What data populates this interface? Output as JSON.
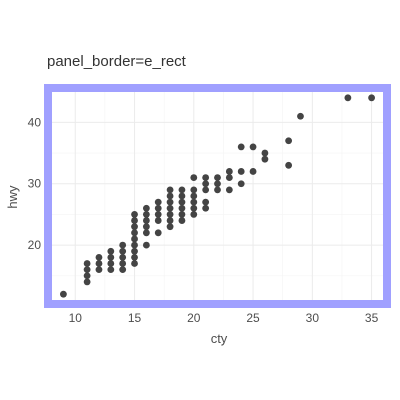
{
  "chart_data": {
    "type": "scatter",
    "title": "panel_border=e_rect",
    "xlabel": "cty",
    "ylabel": "hwy",
    "xlim": [
      7.7,
      36.3
    ],
    "ylim": [
      10.4,
      45.6
    ],
    "x_ticks": [
      "10",
      "15",
      "20",
      "25",
      "30",
      "35"
    ],
    "y_ticks": [
      "20",
      "30",
      "40"
    ],
    "grid": true,
    "border_color": "#a0a0ff",
    "point_color": "#444444",
    "series": [
      {
        "points": [
          [
            9,
            12
          ],
          [
            11,
            14
          ],
          [
            11,
            15
          ],
          [
            11,
            16
          ],
          [
            11,
            17
          ],
          [
            12,
            16
          ],
          [
            12,
            17
          ],
          [
            12,
            18
          ],
          [
            13,
            16
          ],
          [
            13,
            17
          ],
          [
            13,
            18
          ],
          [
            13,
            19
          ],
          [
            14,
            16
          ],
          [
            14,
            17
          ],
          [
            14,
            18
          ],
          [
            14,
            19
          ],
          [
            14,
            20
          ],
          [
            15,
            17
          ],
          [
            15,
            18
          ],
          [
            15,
            19
          ],
          [
            15,
            20
          ],
          [
            15,
            21
          ],
          [
            15,
            22
          ],
          [
            15,
            23
          ],
          [
            15,
            24
          ],
          [
            15,
            25
          ],
          [
            16,
            20
          ],
          [
            16,
            22
          ],
          [
            16,
            23
          ],
          [
            16,
            24
          ],
          [
            16,
            25
          ],
          [
            16,
            26
          ],
          [
            17,
            22
          ],
          [
            17,
            24
          ],
          [
            17,
            25
          ],
          [
            17,
            26
          ],
          [
            17,
            27
          ],
          [
            18,
            23
          ],
          [
            18,
            24
          ],
          [
            18,
            25
          ],
          [
            18,
            26
          ],
          [
            18,
            27
          ],
          [
            18,
            28
          ],
          [
            18,
            29
          ],
          [
            19,
            24
          ],
          [
            19,
            25
          ],
          [
            19,
            26
          ],
          [
            19,
            27
          ],
          [
            19,
            28
          ],
          [
            19,
            29
          ],
          [
            20,
            25
          ],
          [
            20,
            26
          ],
          [
            20,
            27
          ],
          [
            20,
            28
          ],
          [
            20,
            29
          ],
          [
            20,
            31
          ],
          [
            21,
            26
          ],
          [
            21,
            27
          ],
          [
            21,
            29
          ],
          [
            21,
            30
          ],
          [
            21,
            31
          ],
          [
            22,
            29
          ],
          [
            22,
            30
          ],
          [
            22,
            31
          ],
          [
            23,
            29
          ],
          [
            23,
            31
          ],
          [
            23,
            32
          ],
          [
            24,
            30
          ],
          [
            24,
            32
          ],
          [
            24,
            36
          ],
          [
            25,
            32
          ],
          [
            25,
            36
          ],
          [
            26,
            34
          ],
          [
            26,
            35
          ],
          [
            28,
            33
          ],
          [
            28,
            37
          ],
          [
            29,
            41
          ],
          [
            33,
            44
          ],
          [
            35,
            44
          ]
        ]
      }
    ]
  }
}
